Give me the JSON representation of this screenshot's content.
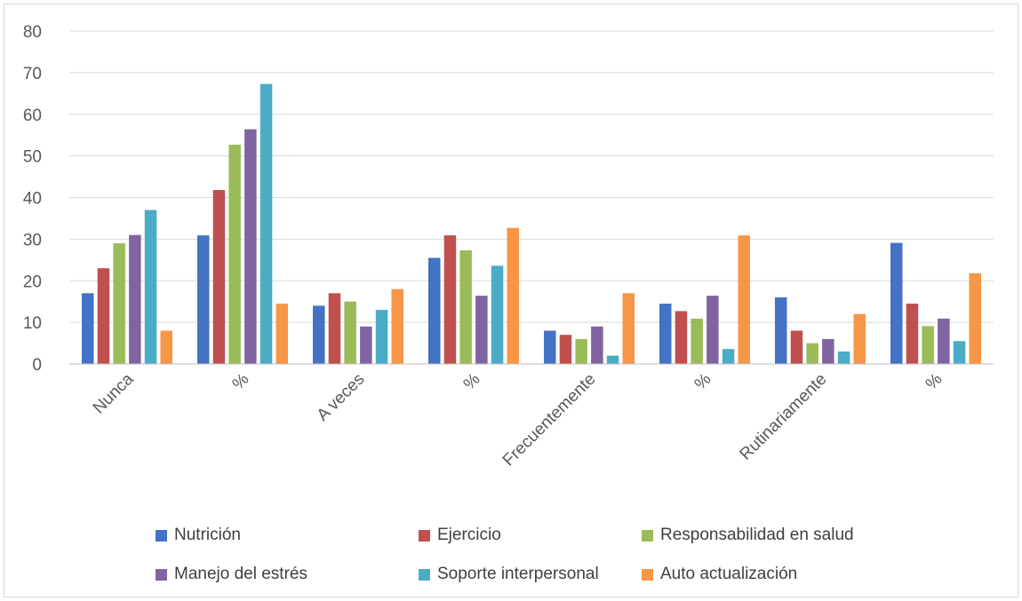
{
  "chart_data": {
    "type": "bar",
    "categories": [
      "Nunca",
      "%",
      "A veces",
      "%",
      "Frecuentemente",
      "%",
      "Rutinariamente",
      "%"
    ],
    "ylim": [
      0,
      80
    ],
    "yticks": [
      0,
      10,
      20,
      30,
      40,
      50,
      60,
      70,
      80
    ],
    "grid": true,
    "legend_position": "bottom",
    "series": [
      {
        "name": "Nutrición",
        "color": "#4472c4",
        "values": [
          17,
          30.9,
          14,
          25.5,
          8,
          14.5,
          16,
          29.1
        ]
      },
      {
        "name": "Ejercicio",
        "color": "#c0504d",
        "values": [
          23,
          41.8,
          17,
          30.9,
          7,
          12.7,
          8,
          14.5
        ]
      },
      {
        "name": "Responsabilidad en salud",
        "color": "#9bbb59",
        "values": [
          29,
          52.7,
          15,
          27.3,
          6,
          10.9,
          5,
          9.1
        ]
      },
      {
        "name": "Manejo del estrés",
        "color": "#8064a2",
        "values": [
          31,
          56.4,
          9,
          16.4,
          9,
          16.4,
          6,
          10.9
        ]
      },
      {
        "name": "Soporte interpersonal",
        "color": "#4bacc6",
        "values": [
          37,
          67.3,
          13,
          23.6,
          2,
          3.6,
          3,
          5.5
        ]
      },
      {
        "name": "Auto actualización",
        "color": "#f79646",
        "values": [
          8,
          14.5,
          18,
          32.7,
          17,
          30.9,
          12,
          21.8
        ]
      }
    ]
  }
}
